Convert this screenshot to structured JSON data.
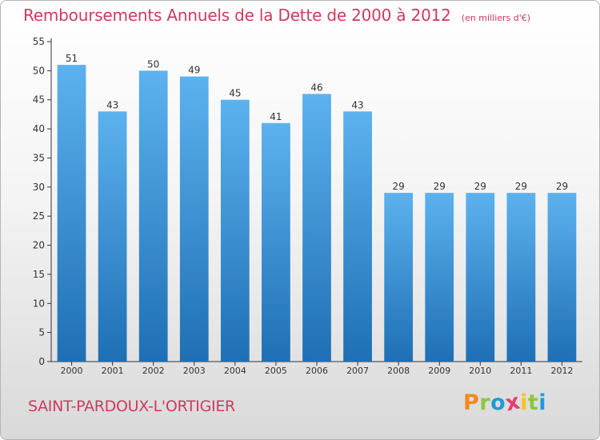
{
  "chart_data": {
    "type": "bar",
    "title": "Remboursements Annuels de la Dette de 2000 à 2012",
    "subtitle": "(en milliers d'€)",
    "categories": [
      "2000",
      "2001",
      "2002",
      "2003",
      "2004",
      "2005",
      "2006",
      "2007",
      "2008",
      "2009",
      "2010",
      "2011",
      "2012"
    ],
    "values": [
      51,
      43,
      50,
      49,
      45,
      41,
      46,
      43,
      29,
      29,
      29,
      29,
      29
    ],
    "ylim": [
      0,
      55
    ],
    "yticks": [
      0,
      5,
      10,
      15,
      20,
      25,
      30,
      35,
      40,
      45,
      50,
      55
    ],
    "xlabel": "",
    "ylabel": "",
    "grid": false,
    "bar_color": "#3a8fd6"
  },
  "location": "SAINT-PARDOUX-L'ORTIGIER",
  "logo": {
    "letters": [
      "P",
      "r",
      "o",
      "x",
      "i",
      "t",
      "i"
    ],
    "colors": [
      "#f08a1c",
      "#8cc63f",
      "#1f9ad6",
      "#e33d6e",
      "#f4c51d",
      "#8cc63f",
      "#1f9ad6"
    ]
  },
  "colors": {
    "title": "#cf3a5e",
    "axis": "#333333"
  }
}
